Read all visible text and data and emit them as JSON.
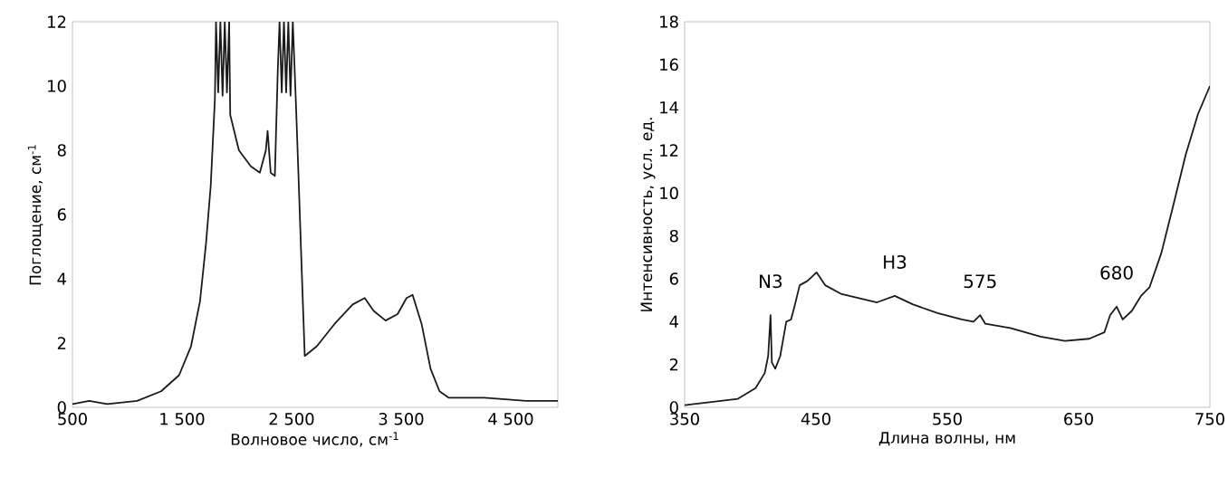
{
  "chart_data": [
    {
      "type": "line",
      "xlabel": "Волновое число, см$^{-1}$",
      "ylabel": "Поглощение, см$^{-1}$",
      "xlim": [
        500,
        4930
      ],
      "ylim": [
        0,
        12
      ],
      "xticks": [
        500,
        {
          "value": 1500,
          "label": "1 500"
        },
        {
          "value": 2500,
          "label": "2 500"
        },
        {
          "value": 3500,
          "label": "3 500"
        },
        {
          "value": 4500,
          "label": "4 500"
        }
      ],
      "yticks": [
        0,
        2,
        4,
        6,
        8,
        10,
        12
      ],
      "grid": false,
      "series": [
        {
          "color": "#1a1a1a",
          "x": [
            500,
            653,
            817,
            1090,
            1309,
            1473,
            1582,
            1664,
            1719,
            1762,
            1800,
            1810,
            1830,
            1850,
            1870,
            1890,
            1910,
            1930,
            1940,
            2019,
            2128,
            2210,
            2265,
            2281,
            2309,
            2347,
            2374,
            2390,
            2410,
            2430,
            2450,
            2470,
            2490,
            2511,
            2538,
            2566,
            2593,
            2620,
            2730,
            2893,
            3057,
            3167,
            3249,
            3358,
            3467,
            3549,
            3604,
            3686,
            3768,
            3850,
            3932,
            4260,
            4642,
            4930
          ],
          "values": [
            0.1,
            0.2,
            0.1,
            0.2,
            0.5,
            1.0,
            1.9,
            3.3,
            5.1,
            6.9,
            9.6,
            12,
            9.8,
            12,
            9.7,
            12,
            9.8,
            12,
            9.1,
            8.0,
            7.5,
            7.3,
            8.0,
            8.6,
            7.3,
            7.2,
            10.5,
            12,
            9.8,
            12,
            9.8,
            12,
            9.7,
            12,
            9.6,
            6.9,
            4.2,
            1.6,
            1.9,
            2.6,
            3.2,
            3.4,
            3.0,
            2.7,
            2.9,
            3.4,
            3.5,
            2.6,
            1.2,
            0.5,
            0.3,
            0.3,
            0.2,
            0.2
          ]
        }
      ]
    },
    {
      "type": "line",
      "xlabel": "Длина волны, нм",
      "ylabel": "Интенсивность, усл. ед.",
      "xlim": [
        350,
        750
      ],
      "ylim": [
        0,
        18
      ],
      "xticks": [
        350,
        450,
        550,
        650,
        750
      ],
      "yticks": [
        0,
        2,
        4,
        6,
        8,
        10,
        12,
        14,
        16,
        18
      ],
      "grid": false,
      "annotations": [
        {
          "text": "N3",
          "x": 415.4,
          "y": 4.3
        },
        {
          "text": "H3",
          "x": 510,
          "y": 5.2
        },
        {
          "text": "575",
          "x": 575,
          "y": 4.3
        },
        {
          "text": "680",
          "x": 679,
          "y": 4.7
        }
      ],
      "series": [
        {
          "color": "#1a1a1a",
          "x": [
            350,
            390.6,
            404,
            411,
            413.6,
            415.4,
            416.4,
            419,
            422.8,
            427.4,
            431,
            434,
            437.6,
            443.5,
            450.5,
            457,
            469,
            482.7,
            496.5,
            510,
            524,
            542.6,
            561,
            570,
            575,
            579,
            598,
            621,
            639.6,
            658,
            669.6,
            674,
            679,
            683.6,
            690.5,
            697.5,
            704,
            713,
            722,
            731.6,
            741,
            750
          ],
          "values": [
            0.1,
            0.4,
            0.9,
            1.6,
            2.4,
            4.3,
            2.1,
            1.8,
            2.4,
            4.0,
            4.1,
            4.8,
            5.7,
            5.9,
            6.3,
            5.7,
            5.3,
            5.1,
            4.9,
            5.2,
            4.8,
            4.4,
            4.1,
            4.0,
            4.3,
            3.9,
            3.7,
            3.3,
            3.1,
            3.2,
            3.5,
            4.3,
            4.7,
            4.1,
            4.5,
            5.2,
            5.6,
            7.2,
            9.4,
            11.8,
            13.7,
            15.0
          ]
        }
      ]
    }
  ]
}
